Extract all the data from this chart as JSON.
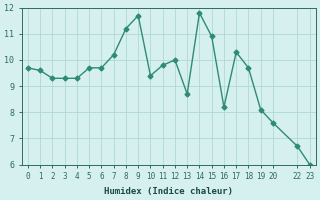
{
  "xlabel": "Humidex (Indice chaleur)",
  "x_values": [
    0,
    1,
    2,
    3,
    4,
    5,
    6,
    7,
    8,
    9,
    10,
    11,
    12,
    13,
    14,
    15,
    16,
    17,
    18,
    19,
    20,
    22,
    23
  ],
  "y_values": [
    9.7,
    9.6,
    9.3,
    9.3,
    9.3,
    9.7,
    9.7,
    10.2,
    11.2,
    11.7,
    9.4,
    9.8,
    10.0,
    8.7,
    11.8,
    10.9,
    8.2,
    10.3,
    9.7,
    8.1,
    7.6,
    6.7,
    6.0
  ],
  "line_color": "#2e8b74",
  "marker_color": "#2e8b74",
  "bg_color": "#d6f0ef",
  "grid_color": "#b0d9d6",
  "tick_label_color": "#2e6b60",
  "axis_label_color": "#1a4a42",
  "ylim": [
    6,
    12
  ],
  "yticks": [
    6,
    7,
    8,
    9,
    10,
    11,
    12
  ],
  "xticks": [
    0,
    1,
    2,
    3,
    4,
    5,
    6,
    7,
    8,
    9,
    10,
    11,
    12,
    13,
    14,
    15,
    16,
    17,
    18,
    19,
    20,
    22,
    23
  ],
  "xtick_labels": [
    "0",
    "1",
    "2",
    "3",
    "4",
    "5",
    "6",
    "7",
    "8",
    "9",
    "10",
    "11",
    "12",
    "13",
    "14",
    "15",
    "16",
    "17",
    "18",
    "19",
    "20",
    "22",
    "23"
  ]
}
